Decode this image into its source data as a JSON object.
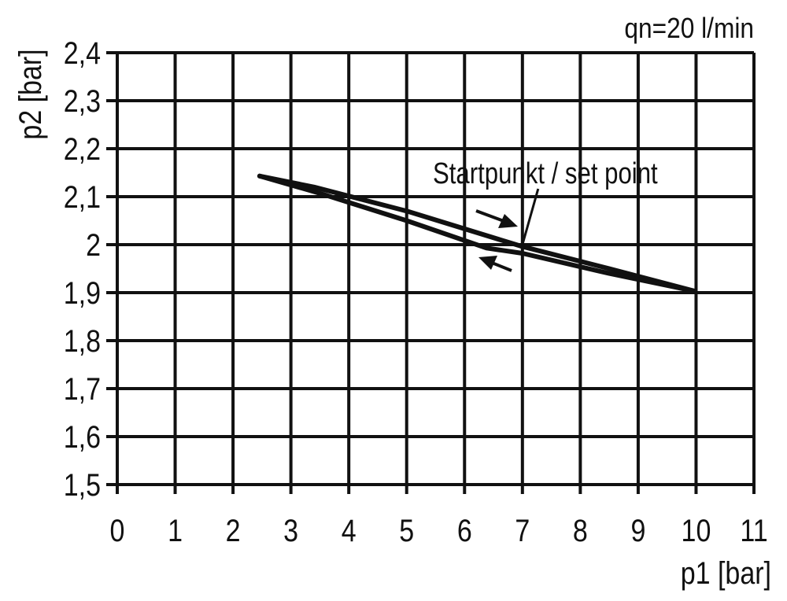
{
  "chart_data": {
    "type": "line",
    "title": "",
    "annotation_top_right": "qn=20 l/min",
    "xlabel": "p1 [bar]",
    "ylabel": "p2 [bar]",
    "xlim": [
      0,
      11
    ],
    "ylim": [
      1.5,
      2.4
    ],
    "grid": true,
    "x_ticks": [
      "0",
      "1",
      "2",
      "3",
      "4",
      "5",
      "6",
      "7",
      "8",
      "9",
      "10",
      "11"
    ],
    "y_ticks": [
      "1,5",
      "1,6",
      "1,7",
      "1,8",
      "1,9",
      "2",
      "2,1",
      "2,2",
      "2,3",
      "2,4"
    ],
    "series": [
      {
        "x": [
          2.46,
          3.4,
          5.0,
          6.97,
          8.5,
          9.98
        ],
        "y": [
          2.143,
          2.12,
          2.07,
          1.997,
          1.95,
          1.903
        ]
      },
      {
        "x": [
          2.46,
          3.5,
          5.0,
          6.38,
          7.0,
          8.5,
          9.98
        ],
        "y": [
          2.143,
          2.107,
          2.05,
          1.993,
          1.982,
          1.94,
          1.903
        ]
      }
    ],
    "set_point": {
      "label": "Startpunkt / set point",
      "x": 7,
      "y": 2.0
    },
    "direction_arrows": [
      "increasing p1",
      "decreasing p1"
    ],
    "line_color": "#111111"
  }
}
